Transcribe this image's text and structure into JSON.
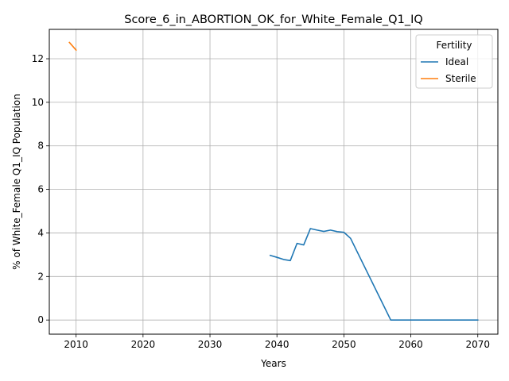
{
  "chart_data": {
    "type": "line",
    "title": "Score_6_in_ABORTION_OK_for_White_Female_Q1_IQ",
    "xlabel": "Years",
    "ylabel": "% of White_Female Q1_IQ Population",
    "xlim": [
      2006,
      2073
    ],
    "ylim": [
      -0.65,
      13.35
    ],
    "x_ticks": [
      2010,
      2020,
      2030,
      2040,
      2050,
      2060,
      2070
    ],
    "y_ticks": [
      0,
      2,
      4,
      6,
      8,
      10,
      12
    ],
    "grid": true,
    "legend": {
      "title": "Fertility",
      "placement": "top-right"
    },
    "series": [
      {
        "name": "Ideal",
        "color": "#1f77b4",
        "points": [
          [
            2039,
            2.97
          ],
          [
            2040,
            2.88
          ],
          [
            2041,
            2.78
          ],
          [
            2042,
            2.73
          ],
          [
            2043,
            3.52
          ],
          [
            2044,
            3.45
          ],
          [
            2045,
            4.2
          ],
          [
            2046,
            4.13
          ],
          [
            2047,
            4.07
          ],
          [
            2048,
            4.13
          ],
          [
            2049,
            4.06
          ],
          [
            2050,
            4.03
          ],
          [
            2051,
            3.75
          ],
          [
            2057,
            0.0
          ],
          [
            2058,
            0.0
          ],
          [
            2060,
            0.0
          ],
          [
            2065,
            0.0
          ],
          [
            2070,
            0.0
          ]
        ]
      },
      {
        "name": "Sterile",
        "color": "#ff7f0e",
        "points": [
          [
            2009,
            12.75
          ],
          [
            2010,
            12.4
          ]
        ]
      }
    ]
  }
}
